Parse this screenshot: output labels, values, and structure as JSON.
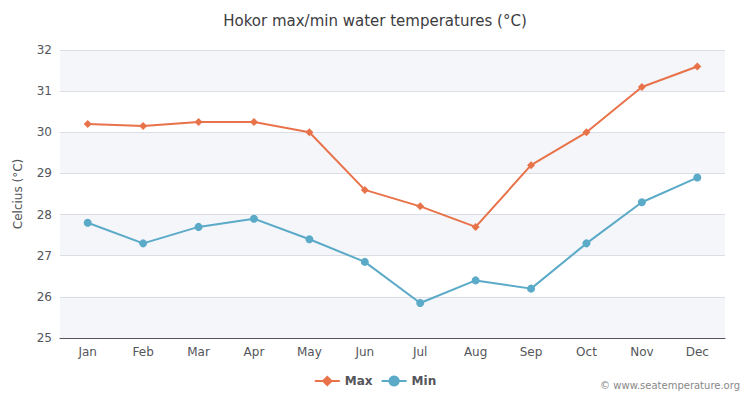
{
  "chart_data": {
    "type": "line",
    "title": "Hokor max/min water temperatures (°C)",
    "ylabel": "Celcius (°C)",
    "categories": [
      "Jan",
      "Feb",
      "Mar",
      "Apr",
      "May",
      "Jun",
      "Jul",
      "Aug",
      "Sep",
      "Oct",
      "Nov",
      "Dec"
    ],
    "series": [
      {
        "name": "Max",
        "color": "#e8724a",
        "marker": "diamond",
        "values": [
          30.2,
          30.15,
          30.25,
          30.25,
          30.0,
          28.6,
          28.2,
          27.7,
          29.2,
          30.0,
          31.1,
          31.6
        ]
      },
      {
        "name": "Min",
        "color": "#5aaac8",
        "marker": "circle",
        "values": [
          27.8,
          27.3,
          27.7,
          27.9,
          27.4,
          26.85,
          25.85,
          26.4,
          26.2,
          27.3,
          28.3,
          28.9
        ]
      }
    ],
    "ylim": [
      25,
      32
    ],
    "yticks": [
      25,
      26,
      27,
      28,
      29,
      30,
      31,
      32
    ],
    "grid": true,
    "legend": "bottom",
    "annotation": "© www.seatemperature.org"
  }
}
